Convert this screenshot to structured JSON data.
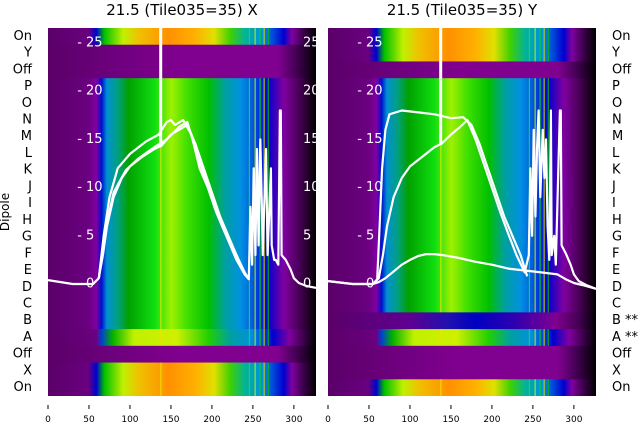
{
  "chart_data": {
    "type": "heatmap",
    "ylabel": "Dipole",
    "x_ticks": [
      0,
      50,
      100,
      150,
      200,
      250,
      300
    ],
    "xlim": [
      0,
      327
    ],
    "line_ylim": [
      -1.2,
      26.8
    ],
    "line_y_ticks": [
      0,
      5,
      10,
      15,
      20,
      25
    ],
    "panels": [
      {
        "title": "21.5 (Tile035=35) X",
        "rows": [
          {
            "label": "On",
            "level": "on"
          },
          {
            "label": "Y",
            "level": "off"
          },
          {
            "label": "Off",
            "level": "off"
          },
          {
            "label": "P",
            "level": "mid"
          },
          {
            "label": "O",
            "level": "mid"
          },
          {
            "label": "N",
            "level": "mid"
          },
          {
            "label": "M",
            "level": "mid"
          },
          {
            "label": "L",
            "level": "mid"
          },
          {
            "label": "K",
            "level": "mid"
          },
          {
            "label": "J",
            "level": "mid"
          },
          {
            "label": "I",
            "level": "mid"
          },
          {
            "label": "H",
            "level": "mid"
          },
          {
            "label": "G",
            "level": "mid"
          },
          {
            "label": "F",
            "level": "mid"
          },
          {
            "label": "E",
            "level": "mid"
          },
          {
            "label": "D",
            "level": "mid"
          },
          {
            "label": "C",
            "level": "mid"
          },
          {
            "label": "B",
            "level": "mid"
          },
          {
            "label": "A",
            "level": "bright"
          },
          {
            "label": "Off",
            "level": "off"
          },
          {
            "label": "X",
            "level": "on"
          },
          {
            "label": "On",
            "level": "on"
          }
        ],
        "lines": [
          {
            "name": "trace-1",
            "points": [
              [
                0,
                0.4
              ],
              [
                30,
                0
              ],
              [
                55,
                0
              ],
              [
                62,
                0.6
              ],
              [
                67,
                3
              ],
              [
                72,
                6
              ],
              [
                80,
                9
              ],
              [
                90,
                11
              ],
              [
                100,
                12.2
              ],
              [
                115,
                13.2
              ],
              [
                130,
                14
              ],
              [
                137,
                14.3
              ],
              [
                137,
                26.8
              ],
              [
                138,
                26.8
              ],
              [
                138,
                14.3
              ],
              [
                150,
                15.5
              ],
              [
                160,
                16
              ],
              [
                170,
                16.5
              ],
              [
                180,
                14.5
              ],
              [
                190,
                12
              ],
              [
                200,
                9.5
              ],
              [
                210,
                7
              ],
              [
                220,
                5
              ],
              [
                230,
                3
              ],
              [
                240,
                1.2
              ],
              [
                245,
                0.5
              ],
              [
                247,
                8
              ],
              [
                249,
                2
              ],
              [
                251,
                12
              ],
              [
                253,
                3
              ],
              [
                255,
                14
              ],
              [
                257,
                4
              ],
              [
                259,
                15
              ],
              [
                261,
                8
              ],
              [
                262,
                3
              ],
              [
                266,
                14
              ],
              [
                268,
                3
              ],
              [
                272,
                12
              ],
              [
                273,
                4
              ],
              [
                276,
                2.5
              ],
              [
                278,
                2.5
              ],
              [
                281,
                2
              ],
              [
                283,
                18
              ],
              [
                284,
                18
              ],
              [
                285,
                3
              ],
              [
                290,
                2.5
              ],
              [
                296,
                1.5
              ],
              [
                300,
                0.6
              ],
              [
                306,
                0.1
              ],
              [
                315,
                -0.2
              ],
              [
                327,
                -0.4
              ]
            ]
          },
          {
            "name": "trace-2",
            "points": [
              [
                62,
                0.6
              ],
              [
                68,
                5
              ],
              [
                75,
                9
              ],
              [
                85,
                12
              ],
              [
                100,
                13.5
              ],
              [
                120,
                14.8
              ],
              [
                135,
                15.5
              ],
              [
                145,
                16.8
              ],
              [
                150,
                17
              ],
              [
                155,
                16.5
              ],
              [
                165,
                17
              ],
              [
                175,
                15.5
              ],
              [
                185,
                12
              ],
              [
                195,
                10
              ],
              [
                205,
                7.5
              ],
              [
                215,
                5.5
              ],
              [
                230,
                3
              ],
              [
                240,
                1
              ],
              [
                245,
                0.5
              ]
            ]
          },
          {
            "name": "trace-3",
            "points": [
              [
                62,
                0.6
              ],
              [
                70,
                5.5
              ],
              [
                80,
                9.5
              ],
              [
                95,
                11.8
              ],
              [
                110,
                13
              ],
              [
                130,
                14.2
              ],
              [
                145,
                15
              ],
              [
                160,
                16.3
              ],
              [
                170,
                16.8
              ],
              [
                180,
                14
              ],
              [
                190,
                11.5
              ],
              [
                200,
                9
              ],
              [
                210,
                6.5
              ],
              [
                220,
                4.5
              ],
              [
                230,
                2.5
              ],
              [
                240,
                1
              ],
              [
                245,
                0.5
              ]
            ]
          }
        ]
      },
      {
        "title": "21.5 (Tile035=35) Y",
        "rows": [
          {
            "label": "On",
            "level": "on"
          },
          {
            "label": "Y",
            "level": "on"
          },
          {
            "label": "Off",
            "level": "off"
          },
          {
            "label": "P",
            "level": "mid"
          },
          {
            "label": "O",
            "level": "mid"
          },
          {
            "label": "N",
            "level": "mid"
          },
          {
            "label": "M",
            "level": "mid"
          },
          {
            "label": "L",
            "level": "mid"
          },
          {
            "label": "K",
            "level": "mid"
          },
          {
            "label": "J",
            "level": "mid"
          },
          {
            "label": "I",
            "level": "mid"
          },
          {
            "label": "H",
            "level": "mid"
          },
          {
            "label": "G",
            "level": "mid"
          },
          {
            "label": "F",
            "level": "mid"
          },
          {
            "label": "E",
            "level": "mid"
          },
          {
            "label": "D",
            "level": "mid"
          },
          {
            "label": "C",
            "level": "mid"
          },
          {
            "label": "B **",
            "level": "dim"
          },
          {
            "label": "A **",
            "level": "bright"
          },
          {
            "label": "Off",
            "level": "off"
          },
          {
            "label": "X",
            "level": "off"
          },
          {
            "label": "On",
            "level": "on"
          }
        ],
        "lines": [
          {
            "name": "trace-1",
            "points": [
              [
                0,
                0.3
              ],
              [
                30,
                0
              ],
              [
                55,
                0
              ],
              [
                60,
                0.5
              ],
              [
                63,
                6
              ],
              [
                66,
                12
              ],
              [
                70,
                16
              ],
              [
                75,
                17.6
              ],
              [
                90,
                18
              ],
              [
                110,
                17.8
              ],
              [
                130,
                17.6
              ],
              [
                150,
                17.2
              ],
              [
                165,
                17.3
              ],
              [
                175,
                16.5
              ],
              [
                185,
                14.5
              ],
              [
                195,
                12
              ],
              [
                205,
                9.5
              ],
              [
                215,
                7
              ],
              [
                225,
                5
              ],
              [
                235,
                3
              ],
              [
                243,
                0.8
              ]
            ]
          },
          {
            "name": "trace-2",
            "points": [
              [
                55,
                0
              ],
              [
                62,
                0.6
              ],
              [
                67,
                3
              ],
              [
                72,
                6
              ],
              [
                80,
                9
              ],
              [
                90,
                11
              ],
              [
                100,
                12.2
              ],
              [
                115,
                13.2
              ],
              [
                130,
                14.2
              ],
              [
                137,
                14.5
              ],
              [
                137,
                26.8
              ],
              [
                138,
                26.8
              ],
              [
                138,
                14.5
              ],
              [
                150,
                15.5
              ],
              [
                160,
                16.2
              ],
              [
                170,
                17
              ],
              [
                180,
                15
              ],
              [
                190,
                12.5
              ],
              [
                200,
                10
              ],
              [
                210,
                7.5
              ],
              [
                220,
                5.2
              ],
              [
                230,
                3
              ],
              [
                240,
                1.2
              ],
              [
                245,
                3
              ],
              [
                247,
                12
              ],
              [
                249,
                5
              ],
              [
                251,
                16
              ],
              [
                253,
                7
              ],
              [
                255,
                14
              ],
              [
                257,
                18
              ],
              [
                259,
                9
              ],
              [
                262,
                16
              ],
              [
                264,
                11
              ],
              [
                266,
                15
              ],
              [
                268,
                6
              ],
              [
                270,
                2.5
              ],
              [
                272,
                18
              ],
              [
                273,
                3
              ],
              [
                276,
                5
              ],
              [
                278,
                2
              ],
              [
                283,
                18
              ],
              [
                284,
                18
              ],
              [
                285,
                4
              ],
              [
                290,
                3.2
              ],
              [
                296,
                2
              ],
              [
                300,
                1
              ],
              [
                306,
                0.3
              ],
              [
                315,
                -0.1
              ],
              [
                327,
                -0.5
              ]
            ]
          },
          {
            "name": "trace-3",
            "points": [
              [
                0,
                0.3
              ],
              [
                30,
                0
              ],
              [
                55,
                0
              ],
              [
                62,
                0.2
              ],
              [
                70,
                0.6
              ],
              [
                80,
                1.3
              ],
              [
                90,
                2
              ],
              [
                100,
                2.5
              ],
              [
                110,
                2.9
              ],
              [
                120,
                3.1
              ],
              [
                130,
                3.1
              ],
              [
                140,
                3
              ],
              [
                160,
                2.7
              ],
              [
                180,
                2.3
              ],
              [
                200,
                2
              ],
              [
                220,
                1.6
              ],
              [
                240,
                1.4
              ],
              [
                260,
                1.2
              ],
              [
                280,
                1
              ],
              [
                290,
                0.5
              ],
              [
                300,
                0.1
              ],
              [
                310,
                -0.1
              ],
              [
                327,
                -0.5
              ]
            ]
          }
        ]
      }
    ]
  }
}
